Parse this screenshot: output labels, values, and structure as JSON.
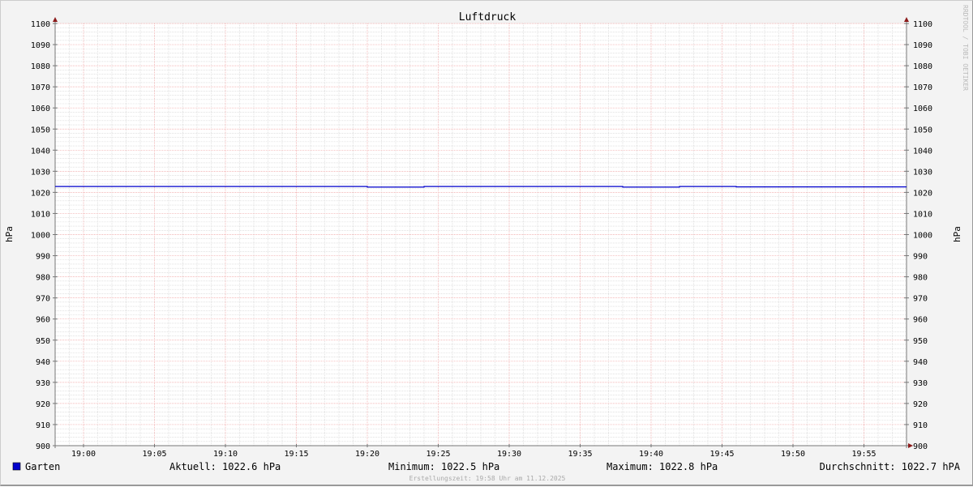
{
  "chart_data": {
    "type": "line",
    "title": "Luftdruck",
    "ylabel": "hPa",
    "ylabel_right": "hPa",
    "ylim": [
      900,
      1100
    ],
    "yticks": [
      900,
      910,
      920,
      930,
      940,
      950,
      960,
      970,
      980,
      990,
      1000,
      1010,
      1020,
      1030,
      1040,
      1050,
      1060,
      1070,
      1080,
      1090,
      1100
    ],
    "xlim": [
      "18:58",
      "19:58"
    ],
    "xticks": [
      "19:00",
      "19:05",
      "19:10",
      "19:15",
      "19:20",
      "19:25",
      "19:30",
      "19:35",
      "19:40",
      "19:45",
      "19:50",
      "19:55"
    ],
    "grid": true,
    "series": [
      {
        "name": "Garten",
        "color": "#0000cc",
        "points": [
          {
            "x": "18:58",
            "y": 1022.8
          },
          {
            "x": "19:20",
            "y": 1022.8
          },
          {
            "x": "19:20",
            "y": 1022.5
          },
          {
            "x": "19:24",
            "y": 1022.5
          },
          {
            "x": "19:24",
            "y": 1022.8
          },
          {
            "x": "19:38",
            "y": 1022.8
          },
          {
            "x": "19:38",
            "y": 1022.5
          },
          {
            "x": "19:42",
            "y": 1022.5
          },
          {
            "x": "19:42",
            "y": 1022.8
          },
          {
            "x": "19:46",
            "y": 1022.8
          },
          {
            "x": "19:46",
            "y": 1022.6
          },
          {
            "x": "19:58",
            "y": 1022.6
          }
        ]
      }
    ]
  },
  "legend": {
    "name": "Garten",
    "aktuell": "Aktuell: 1022.6 hPa",
    "minimum": "Minimum: 1022.5 hPa",
    "maximum": "Maximum: 1022.8 hPa",
    "durchschnitt": "Durchschnitt: 1022.7 hPA"
  },
  "footer": "Erstellungszeit: 19:58 Uhr am 11.12.2025",
  "watermark": "RRDTOOL / TOBI OETIKER"
}
